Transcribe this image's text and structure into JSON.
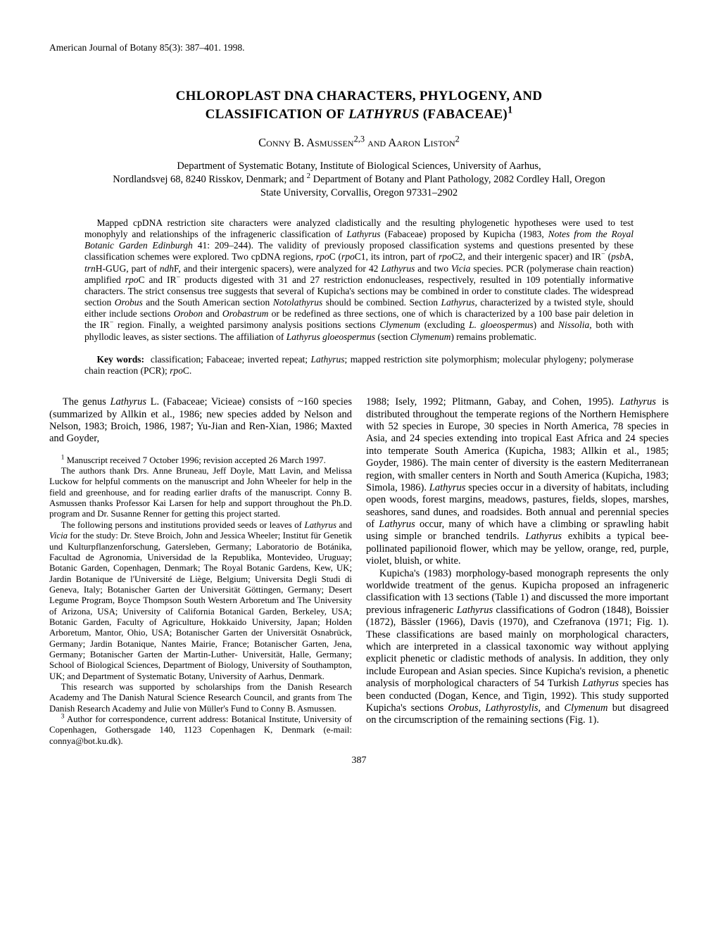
{
  "header": {
    "journal_line": "American Journal of Botany 85(3): 387–401. 1998."
  },
  "title": {
    "line1_html": "C<span class='sc'>HLOROPLAST</span> DNA <span class='sc'>CHARACTERS, PHYLOGENY, AND</span>",
    "line2_html": "<span class='sc'>CLASSIFICATION OF</span> <span class='genus'>LATHYRUS</span> (F<span class='sc'>ABACEAE</span>)<sup>1</sup>"
  },
  "authors_html": "C<span class='authors-sc'>onny</span> B. A<span class='authors-sc'>smussen</span><sup>2,3</sup> <span class='authors-sc'>and</span> A<span class='authors-sc'>aron</span> L<span class='authors-sc'>iston</span><sup>2</sup>",
  "affiliations": {
    "line1": "Department of Systematic Botany, Institute of Biological Sciences, University of Aarhus,",
    "line2_html": "Nordlandsvej 68, 8240 Risskov, Denmark; and <sup>2</sup> Department of Botany and Plant Pathology, 2082 Cordley Hall, Oregon",
    "line3": "State University, Corvallis, Oregon 97331–2902"
  },
  "abstract_html": "Mapped cpDNA restriction site characters were analyzed cladistically and the resulting phylogenetic hypotheses were used to test monophyly and relationships of the infrageneric classification of <span class='genus'>Lathyrus</span> (Fabaceae) proposed by Kupicha (1983, <span class='genus'>Notes from the Royal Botanic Garden Edinburgh</span> 41: 209–244). The validity of previously proposed classification systems and questions presented by these classification schemes were explored. Two cpDNA regions, <span class='genus'>rpo</span>C (<span class='genus'>rpo</span>C1, its intron, part of <span class='genus'>rpo</span>C2, and their intergenic spacer) and IR<sup>−</sup> (<span class='genus'>psb</span>A, <span class='genus'>trn</span>H-GUG, part of <span class='genus'>ndh</span>F, and their intergenic spacers), were analyzed for 42 <span class='genus'>Lathyrus</span> and two <span class='genus'>Vicia</span> species. PCR (polymerase chain reaction) amplified <span class='genus'>rpo</span>C and IR<sup>−</sup> products digested with 31 and 27 restriction endonucleases, respectively, resulted in 109 potentially informative characters. The strict consensus tree suggests that several of Kupicha's sections may be combined in order to constitute clades. The widespread section <span class='genus'>Orobus</span> and the South American section <span class='genus'>Notolathyrus</span> should be combined. Section <span class='genus'>Lathyrus,</span> characterized by a twisted style, should either include sections <span class='genus'>Orobon</span> and <span class='genus'>Orobastrum</span> or be redefined as three sections, one of which is characterized by a 100 base pair deletion in the IR<sup>−</sup> region. Finally, a weighted parsimony analysis positions sections <span class='genus'>Clymenum</span> (excluding <span class='genus'>L. gloeospermus</span>) and <span class='genus'>Nissolia,</span> both with phyllodic leaves, as sister sections. The affiliation of <span class='genus'>Lathyrus gloeospermus</span> (section <span class='genus'>Clymenum</span>) remains problematic.",
  "keywords_html": "<b>Key words:</b>&nbsp;&nbsp;classification; Fabaceae; inverted repeat; <span class='genus'>Lathyrus</span>; mapped restriction site polymorphism; molecular phylogeny; polymerase chain reaction (PCR); <span class='genus'>rpo</span>C.",
  "body": {
    "col1_p1_html": "The genus <span class='genus'>Lathyrus</span> L. (Fabaceae; Vicieae) consists of ~160 species (summarized by Allkin et al., 1986; new species added by Nelson and Nelson, 1983; Broich, 1986, 1987; Yu-Jian and Ren-Xian, 1986; Maxted and Goyder,",
    "fn1_html": "<sup>1</sup> Manuscript received 7 October 1996; revision accepted 26 March 1997.",
    "fn2_html": "The authors thank Drs. Anne Bruneau, Jeff Doyle, Matt Lavin, and Melissa Luckow for helpful comments on the manuscript and John Wheeler for help in the field and greenhouse, and for reading earlier drafts of the manuscript. Conny B. Asmussen thanks Professor Kai Larsen for help and support throughout the Ph.D. program and Dr. Susanne Renner for getting this project started.",
    "fn3_html": "The following persons and institutions provided seeds or leaves of <span class='genus'>Lathyrus</span> and <span class='genus'>Vicia</span> for the study: Dr. Steve Broich, John and Jessica Wheeler; Institut für Genetik und Kulturpflanzenforschung, Gatersleben, Germany; Laboratorio de Botánika, Facultad de Agronomia, Universidad de la Republika, Montevideo, Uruguay; Botanic Garden, Copenhagen, Denmark; The Royal Botanic Gardens, Kew, UK; Jardin Botanique de l'Université de Liège, Belgium; Universita Degli Studi di Geneva, Italy; Botanischer Garten der Universität Göttingen, Germany; Desert Legume Program, Boyce Thompson South Western Arboretum and The University of Arizona, USA; University of California Botanical Garden, Berkeley, USA; Botanic Garden, Faculty of Agriculture, Hokkaido University, Japan; Holden Arboretum, Mantor, Ohio, USA; Botanischer Garten der Universität Osnabrück, Germany; Jardin Botanique, Nantes Mairie, France; Botanischer Garten, Jena, Germany; Botanischer Garten der Martin-Luther- Universität, Halle, Germany; School of Biological Sciences, Department of Biology, University of Southampton, UK; and Department of Systematic Botany, University of Aarhus, Denmark.",
    "fn4_html": "This research was supported by scholarships from the Danish Research Academy and The Danish Natural Science Research Council, and grants from The Danish Research Academy and Julie von Müller's Fund to Conny B. Asmussen.",
    "fn5_html": "<sup>3</sup> Author for correspondence, current address: Botanical Institute, University of Copenhagen, Gothersgade 140, 1123 Copenhagen K, Denmark (e-mail: connya@bot.ku.dk).",
    "col2_p1_html": "1988; Isely, 1992; Plitmann, Gabay, and Cohen, 1995). <span class='genus'>Lathyrus</span> is distributed throughout the temperate regions of the Northern Hemisphere with 52 species in Europe, 30 species in North America, 78 species in Asia, and 24 species extending into tropical East Africa and 24 species into temperate South America (Kupicha, 1983; Allkin et al., 1985; Goyder, 1986). The main center of diversity is the eastern Mediterranean region, with smaller centers in North and South America (Kupicha, 1983; Simola, 1986). <span class='genus'>Lathyrus</span> species occur in a diversity of habitats, including open woods, forest margins, meadows, pastures, fields, slopes, marshes, seashores, sand dunes, and roadsides. Both annual and perennial species of <span class='genus'>Lathyrus</span> occur, many of which have a climbing or sprawling habit using simple or branched tendrils. <span class='genus'>Lathyrus</span> exhibits a typical bee-pollinated papilionoid flower, which may be yellow, orange, red, purple, violet, bluish, or white.",
    "col2_p2_html": "Kupicha's (1983) morphology-based monograph represents the only worldwide treatment of the genus. Kupicha proposed an infrageneric classification with 13 sections (Table 1) and discussed the more important previous infrageneric <span class='genus'>Lathyrus</span> classifications of Godron (1848), Boissier (1872), Bässler (1966), Davis (1970), and Czefranova (1971; Fig. 1). These classifications are based mainly on morphological characters, which are interpreted in a classical taxonomic way without applying explicit phenetic or cladistic methods of analysis. In addition, they only include European and Asian species. Since Kupicha's revision, a phenetic analysis of morphological characters of 54 Turkish <span class='genus'>Lathyrus</span> species has been conducted (Dogan, Kence, and Tigin, 1992). This study supported Kupicha's sections <span class='genus'>Orobus, Lathyrostylis,</span> and <span class='genus'>Clymenum</span> but disagreed on the circumscription of the remaining sections (Fig. 1)."
  },
  "page_number": "387"
}
